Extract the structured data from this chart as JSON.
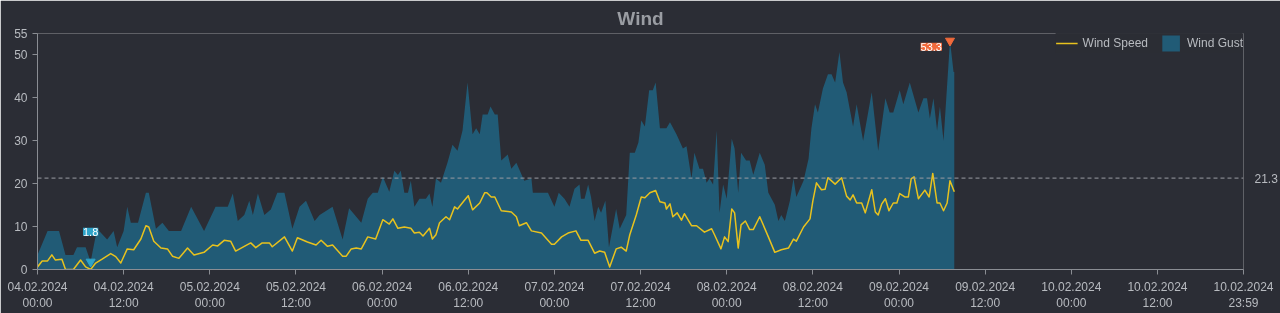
{
  "chart_data": {
    "type": "area",
    "title": "Wind",
    "xlim": [
      "2024-02-04T00:00",
      "2024-02-10T23:59"
    ],
    "xticks": [
      {
        "value": "2024-02-04T00:00",
        "label": "04.02.2024\n00:00"
      },
      {
        "value": "2024-02-04T12:00",
        "label": "04.02.2024\n12:00"
      },
      {
        "value": "2024-02-05T00:00",
        "label": "05.02.2024\n00:00"
      },
      {
        "value": "2024-02-05T12:00",
        "label": "05.02.2024\n12:00"
      },
      {
        "value": "2024-02-06T00:00",
        "label": "06.02.2024\n00:00"
      },
      {
        "value": "2024-02-06T12:00",
        "label": "06.02.2024\n12:00"
      },
      {
        "value": "2024-02-07T00:00",
        "label": "07.02.2024\n00:00"
      },
      {
        "value": "2024-02-07T12:00",
        "label": "07.02.2024\n12:00"
      },
      {
        "value": "2024-02-08T00:00",
        "label": "08.02.2024\n00:00"
      },
      {
        "value": "2024-02-08T12:00",
        "label": "08.02.2024\n12:00"
      },
      {
        "value": "2024-02-09T00:00",
        "label": "09.02.2024\n00:00"
      },
      {
        "value": "2024-02-09T12:00",
        "label": "09.02.2024\n12:00"
      },
      {
        "value": "2024-02-10T00:00",
        "label": "10.02.2024\n00:00"
      },
      {
        "value": "2024-02-10T12:00",
        "label": "10.02.2024\n12:00"
      },
      {
        "value": "2024-02-10T23:59",
        "label": "10.02.2024\n23:59"
      }
    ],
    "ylim": [
      0,
      55
    ],
    "yticks": [
      0,
      10,
      20,
      30,
      40,
      50,
      55
    ],
    "legend": "top right",
    "series": [
      {
        "name": "Wind Gust",
        "color": "#215b76",
        "x": [
          "2024-02-04T00:00",
          "2024-02-04T01:24",
          "2024-02-04T03:00",
          "2024-02-04T03:54",
          "2024-02-04T05:00",
          "2024-02-04T05:30",
          "2024-02-04T06:42",
          "2024-02-04T07:24",
          "2024-02-04T08:18",
          "2024-02-04T09:42",
          "2024-02-04T10:36",
          "2024-02-04T11:06",
          "2024-02-04T12:00",
          "2024-02-04T12:30",
          "2024-02-04T13:00",
          "2024-02-04T14:00",
          "2024-02-04T15:06",
          "2024-02-04T15:30",
          "2024-02-04T16:30",
          "2024-02-04T17:24",
          "2024-02-04T18:18",
          "2024-02-04T20:00",
          "2024-02-04T21:24",
          "2024-02-04T23:12",
          "2024-02-05T00:48",
          "2024-02-05T02:30",
          "2024-02-05T03:12",
          "2024-02-05T03:54",
          "2024-02-05T04:48",
          "2024-02-05T05:30",
          "2024-02-05T06:00",
          "2024-02-05T06:42",
          "2024-02-05T07:36",
          "2024-02-05T08:30",
          "2024-02-05T09:24",
          "2024-02-05T10:24",
          "2024-02-05T11:30",
          "2024-02-05T12:30",
          "2024-02-05T13:24",
          "2024-02-05T14:36",
          "2024-02-05T15:18",
          "2024-02-05T17:06",
          "2024-02-05T18:30",
          "2024-02-05T19:24",
          "2024-02-05T21:06",
          "2024-02-05T22:00",
          "2024-02-05T22:42",
          "2024-02-05T23:24",
          "2024-02-06T00:06",
          "2024-02-06T01:00",
          "2024-02-06T01:42",
          "2024-02-06T02:12",
          "2024-02-06T02:36",
          "2024-02-06T03:06",
          "2024-02-06T03:36",
          "2024-02-06T04:00",
          "2024-02-06T04:30",
          "2024-02-06T05:12",
          "2024-02-06T06:06",
          "2024-02-06T06:36",
          "2024-02-06T07:00",
          "2024-02-06T07:30",
          "2024-02-06T08:12",
          "2024-02-06T09:06",
          "2024-02-06T09:48",
          "2024-02-06T10:30",
          "2024-02-06T11:12",
          "2024-02-06T11:54",
          "2024-02-06T12:36",
          "2024-02-06T13:06",
          "2024-02-06T13:36",
          "2024-02-06T14:00",
          "2024-02-06T14:42",
          "2024-02-06T15:06",
          "2024-02-06T15:42",
          "2024-02-06T16:06",
          "2024-02-06T16:36",
          "2024-02-06T17:30",
          "2024-02-06T18:00",
          "2024-02-06T18:42",
          "2024-02-06T19:48",
          "2024-02-06T20:48",
          "2024-02-06T21:00",
          "2024-02-06T23:06",
          "2024-02-07T00:00",
          "2024-02-07T00:36",
          "2024-02-07T01:24",
          "2024-02-07T02:06",
          "2024-02-07T02:48",
          "2024-02-07T03:30",
          "2024-02-07T03:42",
          "2024-02-07T04:12",
          "2024-02-07T04:42",
          "2024-02-07T05:06",
          "2024-02-07T05:36",
          "2024-02-07T06:06",
          "2024-02-07T06:30",
          "2024-02-07T07:06",
          "2024-02-07T07:36",
          "2024-02-07T08:36",
          "2024-02-07T09:06",
          "2024-02-07T10:00",
          "2024-02-07T10:30",
          "2024-02-07T11:12",
          "2024-02-07T11:42",
          "2024-02-07T12:06",
          "2024-02-07T12:36",
          "2024-02-07T13:12",
          "2024-02-07T13:42",
          "2024-02-07T14:06",
          "2024-02-07T14:42",
          "2024-02-07T15:36",
          "2024-02-07T16:06",
          "2024-02-07T17:00",
          "2024-02-07T17:54",
          "2024-02-07T18:24",
          "2024-02-07T19:06",
          "2024-02-07T19:30",
          "2024-02-07T20:12",
          "2024-02-07T20:42",
          "2024-02-07T21:12",
          "2024-02-07T21:36",
          "2024-02-07T22:06",
          "2024-02-07T22:36",
          "2024-02-07T23:00",
          "2024-02-07T23:30",
          "2024-02-08T00:00",
          "2024-02-08T00:42",
          "2024-02-08T01:06",
          "2024-02-08T01:36",
          "2024-02-08T02:00",
          "2024-02-08T02:42",
          "2024-02-08T03:12",
          "2024-02-08T03:42",
          "2024-02-08T04:36",
          "2024-02-08T05:18",
          "2024-02-08T05:48",
          "2024-02-08T06:42",
          "2024-02-08T07:12",
          "2024-02-08T07:36",
          "2024-02-08T08:06",
          "2024-02-08T08:48",
          "2024-02-08T09:18",
          "2024-02-08T09:42",
          "2024-02-08T10:42",
          "2024-02-08T11:24",
          "2024-02-08T11:48",
          "2024-02-08T12:18",
          "2024-02-08T12:42",
          "2024-02-08T13:24",
          "2024-02-08T14:06",
          "2024-02-08T14:36",
          "2024-02-08T15:06",
          "2024-02-08T15:42",
          "2024-02-08T16:12",
          "2024-02-08T16:42",
          "2024-02-08T17:36",
          "2024-02-08T18:06",
          "2024-02-08T19:00",
          "2024-02-08T20:12",
          "2024-02-08T21:06",
          "2024-02-08T22:06",
          "2024-02-08T22:42",
          "2024-02-08T23:12",
          "2024-02-09T00:06",
          "2024-02-09T00:36",
          "2024-02-09T01:30",
          "2024-02-09T02:42",
          "2024-02-09T03:24",
          "2024-02-09T03:54",
          "2024-02-09T04:18",
          "2024-02-09T04:48",
          "2024-02-09T05:18",
          "2024-02-09T05:42",
          "2024-02-09T06:12",
          "2024-02-09T07:06",
          "2024-02-09T07:36",
          "2024-02-09T07:42"
        ],
        "values": [
          3.4,
          9,
          9,
          3.4,
          3.4,
          5.2,
          5.2,
          1.8,
          9.5,
          7,
          9,
          5.2,
          9,
          14.6,
          10.9,
          10.9,
          17.9,
          17.9,
          9.5,
          10.9,
          9,
          9,
          14.6,
          9,
          14.6,
          14.6,
          17.7,
          11.3,
          12.7,
          16,
          12.7,
          17.7,
          12.7,
          14,
          17.9,
          17.9,
          9.5,
          14.6,
          16,
          11.3,
          12.7,
          14.6,
          7,
          14.3,
          10.9,
          16.5,
          17.9,
          17.9,
          21.6,
          18.1,
          23,
          22,
          23,
          17.9,
          17.9,
          20.7,
          14.6,
          16.5,
          16.5,
          17.7,
          14.6,
          21.2,
          20.2,
          24.9,
          29.1,
          27.7,
          32.4,
          43.6,
          31.5,
          32.9,
          31.5,
          36.1,
          36.1,
          38,
          36.1,
          36.1,
          25.4,
          26.8,
          23.5,
          24.9,
          20.7,
          21.2,
          17.9,
          17.9,
          14.6,
          17.9,
          16.5,
          14.6,
          18.8,
          19.8,
          16.5,
          16.5,
          19.8,
          16.9,
          11.3,
          14.6,
          13.2,
          16,
          5.2,
          14.1,
          9.5,
          12.7,
          27.2,
          27.2,
          29.6,
          34.7,
          33.3,
          41.8,
          41.8,
          43.6,
          32.9,
          32.9,
          34.3,
          31.5,
          28.2,
          28.7,
          21.2,
          27.2,
          23.5,
          23.5,
          20.2,
          21.2,
          19.8,
          32.4,
          13.2,
          19.8,
          16.5,
          30.5,
          28.2,
          17.9,
          27.2,
          25.4,
          25.4,
          22.1,
          27.2,
          24.4,
          17.9,
          15.1,
          11.3,
          12.7,
          11.3,
          16,
          21.2,
          16.9,
          20.7,
          25.8,
          32.9,
          38.5,
          36.6,
          42.2,
          45.5,
          45.5,
          43.6,
          50.7,
          43.6,
          41.3,
          33.3,
          38.5,
          30,
          41.3,
          27.7,
          39.9,
          36.6,
          36.6,
          41.8,
          38.5,
          43.6,
          36.6,
          39.9,
          39.9,
          35.2,
          39.9,
          32.4,
          38,
          30,
          53.3,
          46,
          46
        ]
      },
      {
        "name": "Wind Speed",
        "type": "line",
        "color": "#e8c21e",
        "x": [
          "2024-02-04T00:00",
          "2024-02-04T00:39",
          "2024-02-04T01:24",
          "2024-02-04T02:00",
          "2024-02-04T02:30",
          "2024-02-04T03:24",
          "2024-02-04T03:54",
          "2024-02-04T05:00",
          "2024-02-04T06:00",
          "2024-02-04T06:42",
          "2024-02-04T07:24",
          "2024-02-04T08:06",
          "2024-02-04T09:00",
          "2024-02-04T10:12",
          "2024-02-04T10:54",
          "2024-02-04T11:36",
          "2024-02-04T12:30",
          "2024-02-04T13:24",
          "2024-02-04T14:24",
          "2024-02-04T15:06",
          "2024-02-04T15:30",
          "2024-02-04T16:12",
          "2024-02-04T17:12",
          "2024-02-04T18:06",
          "2024-02-04T18:48",
          "2024-02-04T19:42",
          "2024-02-04T20:54",
          "2024-02-04T21:48",
          "2024-02-04T23:12",
          "2024-02-05T00:24",
          "2024-02-05T01:06",
          "2024-02-05T02:00",
          "2024-02-05T02:54",
          "2024-02-05T03:36",
          "2024-02-05T04:48",
          "2024-02-05T05:42",
          "2024-02-05T06:24",
          "2024-02-05T07:18",
          "2024-02-05T08:18",
          "2024-02-05T08:42",
          "2024-02-05T10:24",
          "2024-02-05T11:30",
          "2024-02-05T12:12",
          "2024-02-05T13:36",
          "2024-02-05T14:48",
          "2024-02-05T15:30",
          "2024-02-05T16:24",
          "2024-02-05T17:06",
          "2024-02-05T18:30",
          "2024-02-05T19:00",
          "2024-02-05T19:42",
          "2024-02-05T20:24",
          "2024-02-05T21:06",
          "2024-02-05T22:00",
          "2024-02-05T23:06",
          "2024-02-06T00:06",
          "2024-02-06T01:00",
          "2024-02-06T01:30",
          "2024-02-06T02:12",
          "2024-02-06T03:06",
          "2024-02-06T04:00",
          "2024-02-06T04:30",
          "2024-02-06T05:12",
          "2024-02-06T05:42",
          "2024-02-06T06:36",
          "2024-02-06T07:00",
          "2024-02-06T07:30",
          "2024-02-06T08:00",
          "2024-02-06T08:54",
          "2024-02-06T09:24",
          "2024-02-06T10:06",
          "2024-02-06T10:30",
          "2024-02-06T11:30",
          "2024-02-06T12:00",
          "2024-02-06T12:36",
          "2024-02-06T13:36",
          "2024-02-06T14:18",
          "2024-02-06T14:36",
          "2024-02-06T15:12",
          "2024-02-06T15:42",
          "2024-02-06T16:36",
          "2024-02-06T18:00",
          "2024-02-06T18:42",
          "2024-02-06T19:06",
          "2024-02-06T20:06",
          "2024-02-06T20:48",
          "2024-02-06T22:12",
          "2024-02-06T23:36",
          "2024-02-07T00:00",
          "2024-02-07T01:00",
          "2024-02-07T01:54",
          "2024-02-07T03:00",
          "2024-02-07T03:42",
          "2024-02-07T04:42",
          "2024-02-07T05:36",
          "2024-02-07T06:18",
          "2024-02-07T07:00",
          "2024-02-07T07:42",
          "2024-02-07T08:36",
          "2024-02-07T09:18",
          "2024-02-07T10:00",
          "2024-02-07T10:30",
          "2024-02-07T11:24",
          "2024-02-07T12:06",
          "2024-02-07T12:36",
          "2024-02-07T13:18",
          "2024-02-07T14:06",
          "2024-02-07T14:42",
          "2024-02-07T15:24",
          "2024-02-07T15:36",
          "2024-02-07T16:06",
          "2024-02-07T16:30",
          "2024-02-07T17:06",
          "2024-02-07T17:42",
          "2024-02-07T18:06",
          "2024-02-07T19:06",
          "2024-02-07T19:48",
          "2024-02-07T20:54",
          "2024-02-07T21:54",
          "2024-02-07T22:18",
          "2024-02-07T23:12",
          "2024-02-07T23:42",
          "2024-02-08T00:12",
          "2024-02-08T00:42",
          "2024-02-08T01:06",
          "2024-02-08T01:36",
          "2024-02-08T02:00",
          "2024-02-08T02:36",
          "2024-02-08T03:12",
          "2024-02-08T03:42",
          "2024-02-08T04:36",
          "2024-02-08T05:48",
          "2024-02-08T06:42",
          "2024-02-08T07:36",
          "2024-02-08T08:36",
          "2024-02-08T09:18",
          "2024-02-08T09:42",
          "2024-02-08T10:42",
          "2024-02-08T11:36",
          "2024-02-08T12:00",
          "2024-02-08T12:30",
          "2024-02-08T13:12",
          "2024-02-08T13:42",
          "2024-02-08T14:06",
          "2024-02-08T15:06",
          "2024-02-08T16:00",
          "2024-02-08T16:42",
          "2024-02-08T17:12",
          "2024-02-08T17:36",
          "2024-02-08T18:06",
          "2024-02-08T18:48",
          "2024-02-08T19:18",
          "2024-02-08T20:12",
          "2024-02-08T20:42",
          "2024-02-08T21:06",
          "2024-02-08T21:36",
          "2024-02-08T22:06",
          "2024-02-08T22:36",
          "2024-02-08T23:12",
          "2024-02-08T23:42",
          "2024-02-09T00:06",
          "2024-02-09T00:48",
          "2024-02-09T01:18",
          "2024-02-09T01:42",
          "2024-02-09T02:06",
          "2024-02-09T02:42",
          "2024-02-09T03:36",
          "2024-02-09T04:12",
          "2024-02-09T04:42",
          "2024-02-09T05:18",
          "2024-02-09T05:42",
          "2024-02-09T06:12",
          "2024-02-09T06:42",
          "2024-02-09T07:06",
          "2024-02-09T07:42"
        ],
        "values": [
          0.6,
          2,
          2,
          3.4,
          2.2,
          2.4,
          0,
          0,
          2.2,
          0.6,
          0,
          1.5,
          2.4,
          3.7,
          3,
          1.5,
          4.8,
          4.6,
          7.1,
          10.2,
          9.9,
          6.6,
          5,
          4.8,
          3.1,
          2.6,
          5,
          3.4,
          4,
          5.7,
          5.5,
          6.8,
          6.6,
          4.3,
          5.4,
          6.2,
          5.1,
          6.2,
          6.2,
          5.3,
          7.6,
          4.3,
          7.4,
          6.4,
          5.7,
          6.8,
          5.4,
          5.7,
          3.1,
          3.1,
          4.8,
          5,
          4.8,
          7.6,
          7.1,
          11.6,
          10.6,
          11.8,
          9.6,
          9.9,
          9.6,
          8.5,
          8.7,
          7.8,
          9.6,
          7.1,
          8.1,
          10.9,
          12.3,
          11.6,
          14.6,
          14.1,
          16.2,
          17.2,
          13.9,
          15.5,
          17.9,
          17.9,
          16.9,
          16.9,
          13.7,
          13.4,
          12.3,
          10.2,
          10.9,
          9,
          8.5,
          5.9,
          5.9,
          7.6,
          8.5,
          9,
          6.8,
          6.8,
          3.8,
          4.3,
          4,
          0.6,
          4.8,
          5.2,
          4.3,
          8.1,
          12.7,
          16.9,
          16.7,
          17.9,
          18.4,
          15.8,
          15.5,
          14.1,
          15.3,
          12.3,
          13.2,
          11.5,
          13,
          10.2,
          10.2,
          8.7,
          9.5,
          8.1,
          4.8,
          7.6,
          6.5,
          14.1,
          13.2,
          5,
          10.4,
          11.3,
          9.3,
          9.3,
          12.3,
          7.6,
          4,
          4.6,
          5,
          7.1,
          6.6,
          9.9,
          11.8,
          16,
          20.2,
          18.6,
          18.7,
          21.4,
          19.9,
          21.4,
          17.1,
          16.2,
          17.4,
          15.5,
          15.5,
          13.2,
          18.6,
          13.4,
          12.7,
          15.3,
          16.5,
          13.7,
          15.5,
          15.5,
          17.7,
          16.9,
          16.9,
          21.2,
          21.6,
          16.5,
          18.5,
          16.9,
          22.4,
          15.5,
          15.5,
          13.7,
          15.5,
          20.7,
          18.1
        ]
      }
    ],
    "ref_lines": [
      {
        "axis": "y",
        "value": 21.3,
        "label": "21.3",
        "line_style": "dashed",
        "color": "#9a9da3"
      }
    ],
    "annotations": [
      {
        "text": "1.8",
        "x": "2024-02-04T07:24",
        "y": 1.8
      },
      {
        "text": "53.3",
        "x": "2024-02-09T07:06",
        "y": 53.3
      }
    ]
  }
}
